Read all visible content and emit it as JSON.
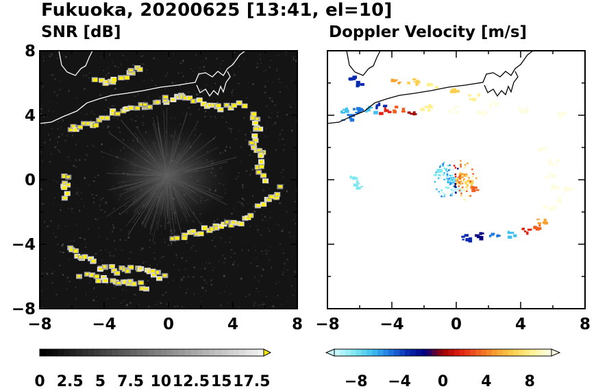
{
  "title": "Fukuoka, 20200625 [13:41, el=10]",
  "panels": {
    "snr": {
      "title": "SNR [dB]"
    },
    "velocity": {
      "title": "Doppler Velocity [m/s]"
    }
  },
  "colors": {
    "snr_background": "#141414",
    "snr_high": "#ffee00",
    "coastline_on_dark": "#ffffff",
    "coastline_on_light": "#000000",
    "velocity_colormap": [
      "#c8f8ff",
      "#7ee8f0",
      "#3ec0f0",
      "#1e78e0",
      "#0a2ab0",
      "#000080",
      "#a00000",
      "#e02010",
      "#f06020",
      "#f8a030",
      "#fbd050",
      "#fff090",
      "#fffde0"
    ]
  },
  "chart_data": [
    {
      "type": "heatmap",
      "title": "SNR [dB]",
      "xlim": [
        -8,
        8
      ],
      "ylim": [
        -8,
        8
      ],
      "xticks": [
        "−8",
        "−4",
        "0",
        "4",
        "8"
      ],
      "yticks": [
        "8",
        "4",
        "0",
        "−4",
        "−8"
      ],
      "colorbar": {
        "range": [
          0,
          18.5
        ],
        "ticks": [
          "0",
          "2.5",
          "5",
          "7.5",
          "10",
          "12.5",
          "15",
          "17.5"
        ],
        "extend": "max"
      }
    },
    {
      "type": "heatmap",
      "title": "Doppler Velocity [m/s]",
      "xlim": [
        -8,
        8
      ],
      "ylim": [
        -8,
        8
      ],
      "xticks": [
        "−8",
        "−4",
        "0",
        "4",
        "8"
      ],
      "yticks": [],
      "colorbar": {
        "range": [
          -10,
          10
        ],
        "ticks": [
          "−8",
          "−4",
          "0",
          "4",
          "8"
        ],
        "extend": "both"
      }
    }
  ]
}
